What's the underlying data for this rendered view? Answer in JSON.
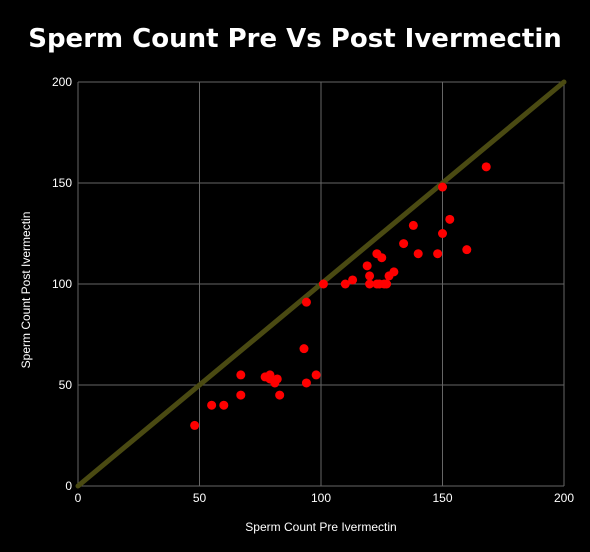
{
  "chart_data": {
    "type": "scatter",
    "title": "Sperm Count Pre Vs Post Ivermectin",
    "xlabel": "Sperm Count Pre Ivermectin",
    "ylabel": "Sperm Count Post Ivermectin",
    "xlim": [
      0,
      200
    ],
    "ylim": [
      0,
      200
    ],
    "xticks": [
      0,
      50,
      100,
      150,
      200
    ],
    "yticks": [
      0,
      50,
      100,
      150,
      200
    ],
    "grid": true,
    "legend": "none",
    "colors": {
      "background": "#000000",
      "point": "#ff0000",
      "reference_line": "#4a4a12",
      "grid": "#666666",
      "text": "#ffffff"
    },
    "reference_line": {
      "x": [
        0,
        200
      ],
      "y": [
        0,
        200
      ]
    },
    "series": [
      {
        "x": [
          48,
          55,
          60,
          67,
          67,
          77,
          79,
          79,
          81,
          82,
          83,
          93,
          94,
          94,
          98,
          101,
          110,
          113,
          119,
          120,
          120,
          123,
          123,
          124,
          125,
          126,
          127,
          128,
          130,
          134,
          138,
          140,
          148,
          150,
          150,
          153,
          160,
          168
        ],
        "y": [
          30,
          40,
          40,
          45,
          55,
          54,
          53,
          55,
          51,
          53,
          45,
          68,
          51,
          91,
          55,
          100,
          100,
          102,
          109,
          104,
          100,
          115,
          100,
          100,
          113,
          100,
          100,
          104,
          106,
          120,
          129,
          115,
          115,
          148,
          125,
          132,
          117,
          158
        ]
      }
    ]
  }
}
